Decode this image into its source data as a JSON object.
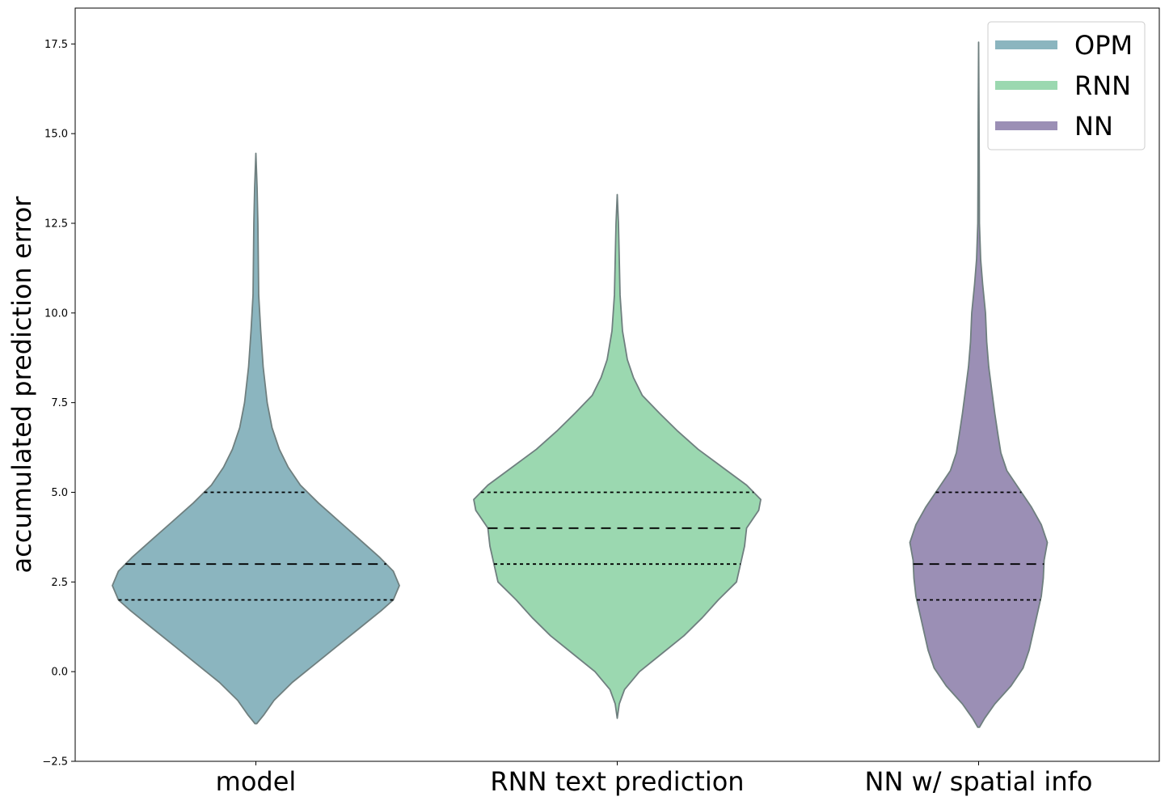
{
  "chart_data": {
    "type": "violin",
    "categories": [
      "model",
      "RNN text prediction",
      "NN w/ spatial info"
    ],
    "ylabel": "accumulated prediction error",
    "xlabel": "",
    "ylim": [
      -2.5,
      18.5
    ],
    "yticks": [
      -2.5,
      0.0,
      2.5,
      5.0,
      7.5,
      10.0,
      12.5,
      15.0,
      17.5
    ],
    "ytick_labels": [
      "−2.5",
      "0.0",
      "2.5",
      "5.0",
      "7.5",
      "10.0",
      "12.5",
      "15.0",
      "17.5"
    ],
    "legend": {
      "position": "top-right",
      "entries": [
        "OPM",
        "RNN",
        "NN"
      ]
    },
    "series": [
      {
        "name": "OPM",
        "category": "model",
        "color": "#8bb5bf",
        "quartiles": {
          "q1": 2.0,
          "median": 3.0,
          "q3": 5.0
        },
        "range": [
          -1.45,
          14.45
        ],
        "profile": [
          [
            -1.45,
            0.02
          ],
          [
            -1.2,
            0.2
          ],
          [
            -0.8,
            0.45
          ],
          [
            -0.3,
            0.9
          ],
          [
            0.2,
            1.45
          ],
          [
            0.7,
            2.0
          ],
          [
            1.2,
            2.55
          ],
          [
            1.7,
            3.1
          ],
          [
            2.0,
            3.4
          ],
          [
            2.4,
            3.55
          ],
          [
            2.8,
            3.4
          ],
          [
            3.2,
            3.05
          ],
          [
            3.7,
            2.55
          ],
          [
            4.2,
            2.05
          ],
          [
            4.7,
            1.55
          ],
          [
            5.2,
            1.1
          ],
          [
            5.7,
            0.8
          ],
          [
            6.2,
            0.58
          ],
          [
            6.8,
            0.4
          ],
          [
            7.5,
            0.28
          ],
          [
            8.5,
            0.18
          ],
          [
            9.5,
            0.12
          ],
          [
            10.5,
            0.07
          ],
          [
            11.5,
            0.06
          ],
          [
            12.5,
            0.05
          ],
          [
            13.5,
            0.03
          ],
          [
            14.45,
            0.0
          ]
        ]
      },
      {
        "name": "RNN",
        "category": "RNN text prediction",
        "color": "#9bd8b0",
        "quartiles": {
          "q1": 3.0,
          "median": 4.0,
          "q3": 5.0
        },
        "range": [
          -1.3,
          13.3
        ],
        "profile": [
          [
            -1.3,
            0.0
          ],
          [
            -0.9,
            0.05
          ],
          [
            -0.5,
            0.18
          ],
          [
            0.0,
            0.55
          ],
          [
            0.5,
            1.1
          ],
          [
            1.0,
            1.65
          ],
          [
            1.5,
            2.1
          ],
          [
            2.0,
            2.5
          ],
          [
            2.5,
            2.95
          ],
          [
            3.0,
            3.05
          ],
          [
            3.5,
            3.15
          ],
          [
            4.0,
            3.2
          ],
          [
            4.5,
            3.5
          ],
          [
            4.8,
            3.55
          ],
          [
            5.2,
            3.2
          ],
          [
            5.7,
            2.6
          ],
          [
            6.2,
            2.0
          ],
          [
            6.7,
            1.5
          ],
          [
            7.2,
            1.05
          ],
          [
            7.7,
            0.62
          ],
          [
            8.2,
            0.4
          ],
          [
            8.7,
            0.25
          ],
          [
            9.5,
            0.13
          ],
          [
            10.5,
            0.07
          ],
          [
            11.5,
            0.05
          ],
          [
            12.5,
            0.03
          ],
          [
            13.3,
            0.0
          ]
        ]
      },
      {
        "name": "NN",
        "category": "NN w/ spatial info",
        "color": "#9b8fb5",
        "quartiles": {
          "q1": 2.0,
          "median": 3.0,
          "q3": 5.0
        },
        "range": [
          -1.55,
          17.55
        ],
        "profile": [
          [
            -1.55,
            0.02
          ],
          [
            -1.3,
            0.15
          ],
          [
            -0.9,
            0.4
          ],
          [
            -0.4,
            0.8
          ],
          [
            0.1,
            1.1
          ],
          [
            0.6,
            1.25
          ],
          [
            1.1,
            1.35
          ],
          [
            1.6,
            1.45
          ],
          [
            2.1,
            1.55
          ],
          [
            2.6,
            1.6
          ],
          [
            3.1,
            1.62
          ],
          [
            3.6,
            1.7
          ],
          [
            4.1,
            1.55
          ],
          [
            4.6,
            1.3
          ],
          [
            5.1,
            1.0
          ],
          [
            5.6,
            0.7
          ],
          [
            6.1,
            0.55
          ],
          [
            6.6,
            0.48
          ],
          [
            7.2,
            0.4
          ],
          [
            7.8,
            0.33
          ],
          [
            8.5,
            0.25
          ],
          [
            9.2,
            0.2
          ],
          [
            10.0,
            0.17
          ],
          [
            10.8,
            0.1
          ],
          [
            11.5,
            0.05
          ],
          [
            12.5,
            0.02
          ],
          [
            14.0,
            0.015
          ],
          [
            15.5,
            0.01
          ],
          [
            17.55,
            0.0
          ]
        ]
      }
    ]
  }
}
